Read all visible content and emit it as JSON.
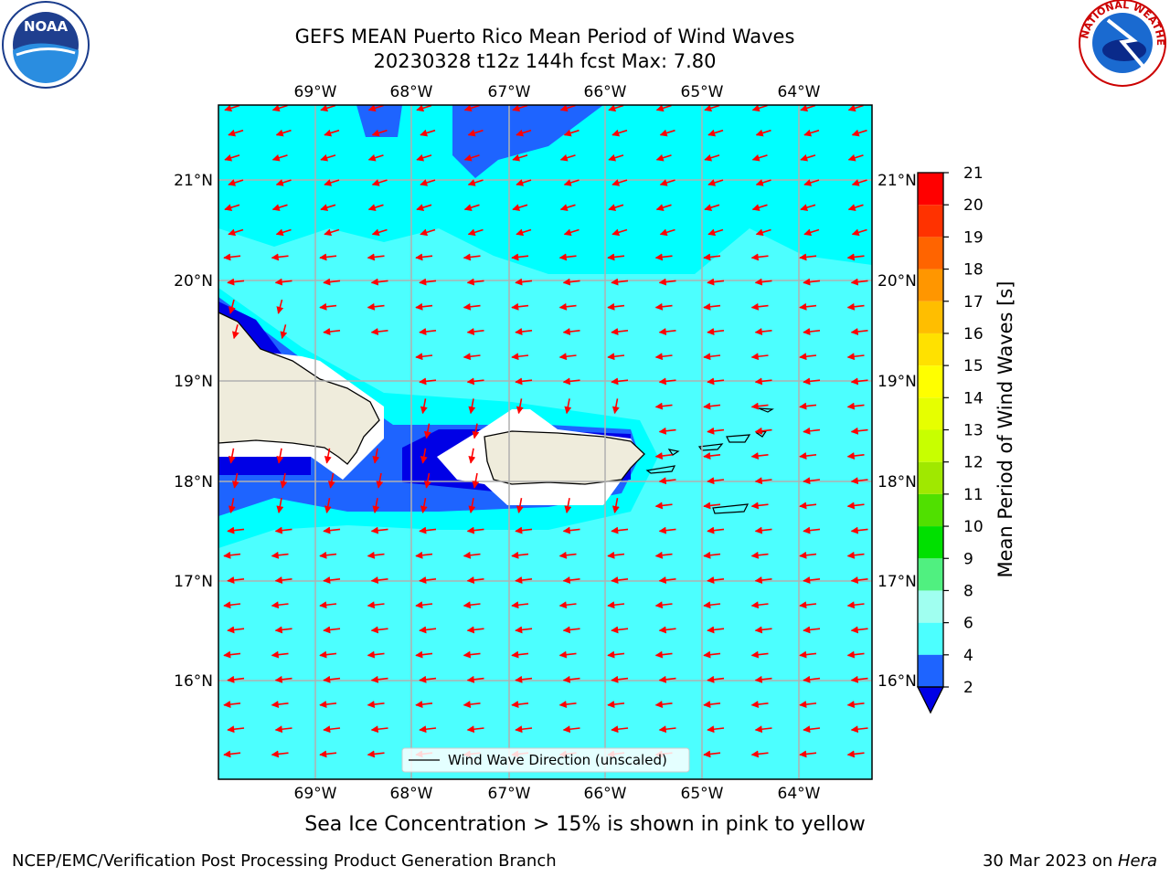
{
  "header": {
    "title_line1": "GEFS MEAN Puerto Rico Mean Period of Wind Waves",
    "title_line2": "20230328 t12z 144h fcst   Max: 7.80"
  },
  "logos": {
    "left": {
      "name": "noaa-logo",
      "text": "NOAA"
    },
    "right": {
      "name": "national-weather-service-logo",
      "text": "NATIONAL WEATHER SERVICE"
    }
  },
  "map": {
    "lon_labels": [
      "69°W",
      "68°W",
      "67°W",
      "66°W",
      "65°W",
      "64°W"
    ],
    "lat_labels": [
      "21°N",
      "20°N",
      "19°N",
      "18°N",
      "17°N",
      "16°N"
    ],
    "legend_text": "Wind Wave Direction (unscaled)",
    "arrow_color": "#ff0000",
    "grid_color": "#b0b0b0"
  },
  "colorbar": {
    "label": "Mean Period of Wind Waves [s]",
    "ticks": [
      "2",
      "4",
      "6",
      "8",
      "9",
      "10",
      "11",
      "12",
      "13",
      "14",
      "15",
      "16",
      "17",
      "18",
      "19",
      "20",
      "21"
    ],
    "colors": [
      "#1e64ff",
      "#00ffff",
      "#4cffff",
      "#a0fff0",
      "#50f080",
      "#00e000",
      "#50e000",
      "#a0e800",
      "#c8ff00",
      "#e6ff00",
      "#ffff00",
      "#ffe100",
      "#ffbe00",
      "#ff9600",
      "#ff6400",
      "#ff3200",
      "#ff0000"
    ],
    "extend_color": "#0000e6"
  },
  "footer": {
    "caption": "Sea Ice Concentration > 15% is shown in pink to yellow",
    "left_text": "NCEP/EMC/Verification Post Processing Product Generation Branch",
    "date_text": "30 Mar 2023 on ",
    "host_text": "Hera"
  }
}
